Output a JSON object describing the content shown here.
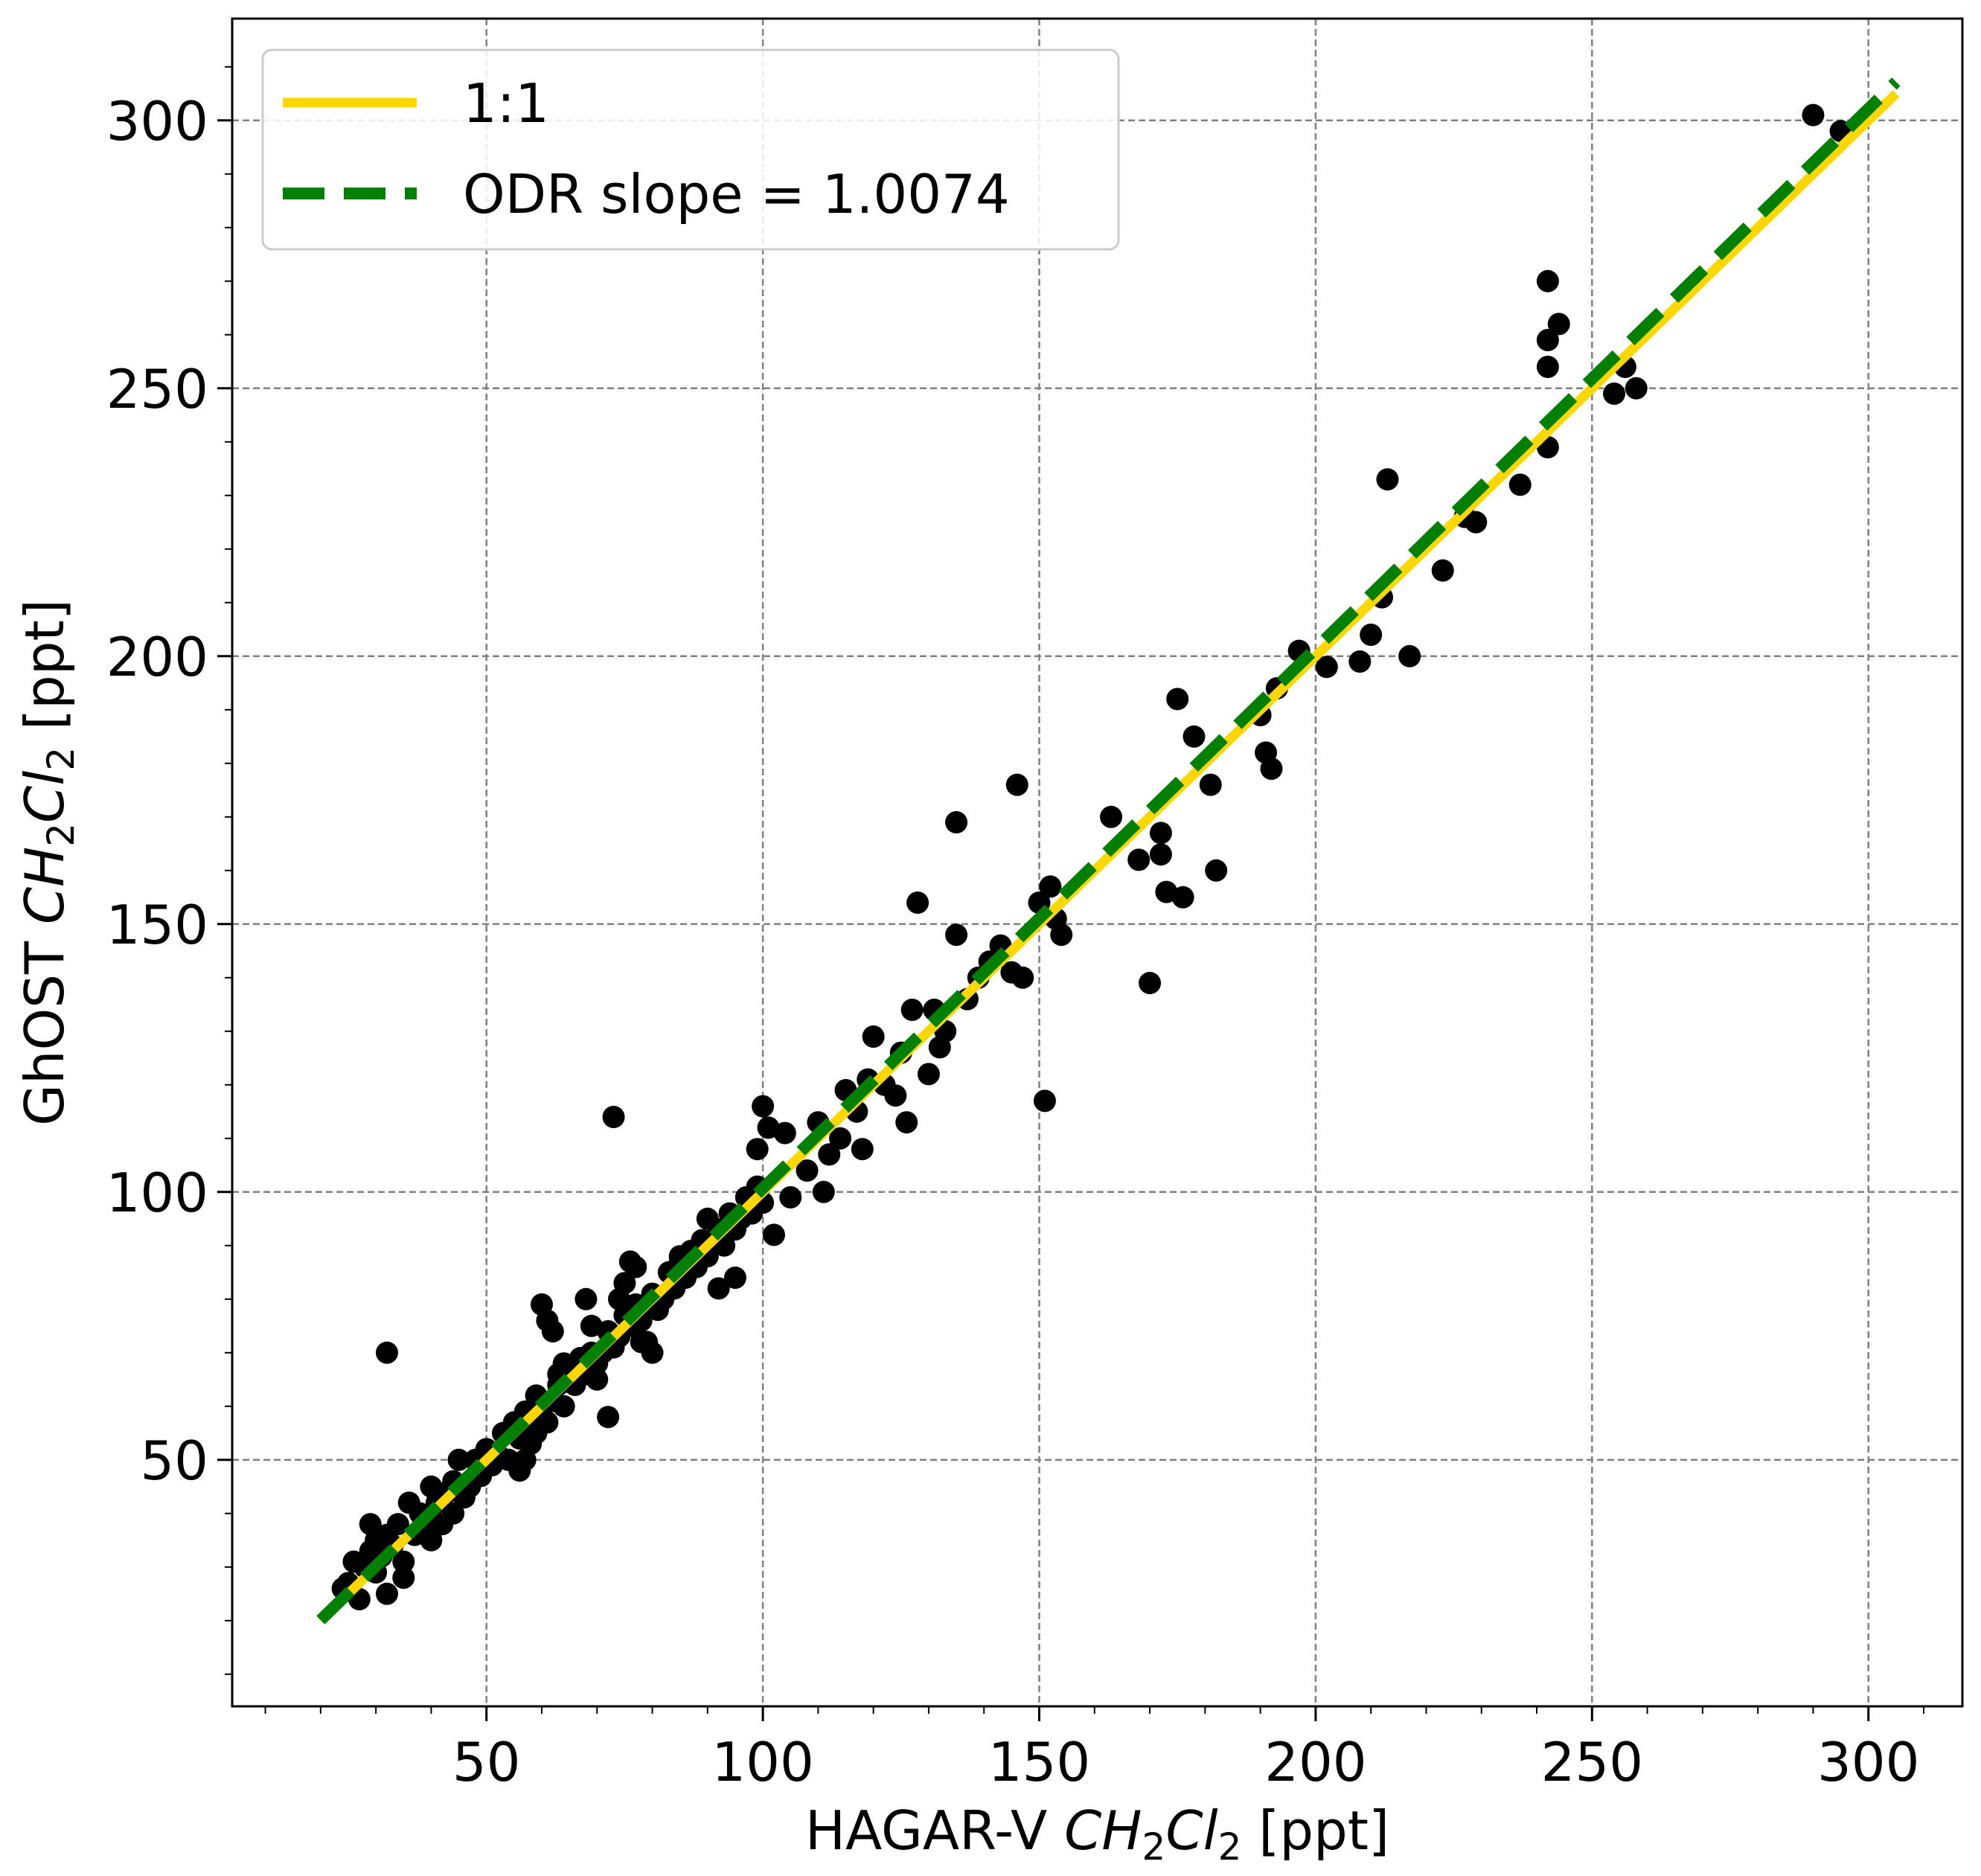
{
  "chart_data": {
    "type": "scatter",
    "xlabel": {
      "prefix": "HAGAR-V ",
      "formula": [
        "CH",
        "2",
        "Cl",
        "2"
      ],
      "suffix": " [ppt]"
    },
    "ylabel": {
      "prefix": "GhOST ",
      "formula": [
        "CH",
        "2",
        "Cl",
        "2"
      ],
      "suffix": " [ppt]"
    },
    "xlim": [
      4,
      317
    ],
    "ylim": [
      4,
      319
    ],
    "x_ticks": [
      50,
      100,
      150,
      200,
      250,
      300
    ],
    "y_ticks": [
      50,
      100,
      150,
      200,
      250,
      300
    ],
    "x_tick_labels": [
      "50",
      "100",
      "150",
      "200",
      "250",
      "300"
    ],
    "y_tick_labels": [
      "50",
      "100",
      "150",
      "200",
      "250",
      "300"
    ],
    "grid": true,
    "legend": {
      "position": "top-left",
      "entries": [
        "1:1",
        "ODR slope = 1.0074"
      ]
    },
    "series": [
      {
        "name": "1:1",
        "kind": "line",
        "style": "solid",
        "color": "#FFD700",
        "x": [
          20,
          305
        ],
        "y": [
          20,
          305
        ]
      },
      {
        "name": "ODR slope = 1.0074",
        "kind": "line",
        "style": "dashed",
        "color": "#008000",
        "x": [
          20,
          305
        ],
        "y": [
          20.1,
          307.2
        ]
      },
      {
        "kind": "scatter",
        "color": "#000000",
        "points": [
          [
            24,
            26
          ],
          [
            25,
            27
          ],
          [
            26,
            31
          ],
          [
            27,
            24
          ],
          [
            28,
            30
          ],
          [
            29,
            33
          ],
          [
            29,
            38
          ],
          [
            30,
            35
          ],
          [
            30,
            29
          ],
          [
            31,
            32
          ],
          [
            32,
            25
          ],
          [
            32,
            36
          ],
          [
            33,
            34
          ],
          [
            34,
            38
          ],
          [
            35,
            31
          ],
          [
            35,
            28
          ],
          [
            36,
            42
          ],
          [
            37,
            36
          ],
          [
            38,
            40
          ],
          [
            39,
            38
          ],
          [
            40,
            45
          ],
          [
            40,
            35
          ],
          [
            41,
            42
          ],
          [
            42,
            38
          ],
          [
            43,
            44
          ],
          [
            44,
            40
          ],
          [
            44,
            46
          ],
          [
            45,
            50
          ],
          [
            46,
            43
          ],
          [
            47,
            45
          ],
          [
            48,
            50
          ],
          [
            49,
            47
          ],
          [
            50,
            52
          ],
          [
            51,
            49
          ],
          [
            52,
            51
          ],
          [
            53,
            55
          ],
          [
            54,
            50
          ],
          [
            55,
            57
          ],
          [
            56,
            54
          ],
          [
            57,
            59
          ],
          [
            58,
            56
          ],
          [
            59,
            62
          ],
          [
            60,
            58
          ],
          [
            61,
            57
          ],
          [
            62,
            61
          ],
          [
            63,
            64
          ],
          [
            64,
            60
          ],
          [
            65,
            67
          ],
          [
            66,
            64
          ],
          [
            67,
            69
          ],
          [
            68,
            66
          ],
          [
            69,
            70
          ],
          [
            70,
            68
          ],
          [
            71,
            70
          ],
          [
            72,
            74
          ],
          [
            73,
            71
          ],
          [
            74,
            73
          ],
          [
            75,
            77
          ],
          [
            76,
            75
          ],
          [
            77,
            79
          ],
          [
            78,
            76
          ],
          [
            79,
            72
          ],
          [
            80,
            81
          ],
          [
            81,
            78
          ],
          [
            82,
            80
          ],
          [
            83,
            85
          ],
          [
            84,
            82
          ],
          [
            85,
            87
          ],
          [
            86,
            84
          ],
          [
            87,
            89
          ],
          [
            88,
            86
          ],
          [
            89,
            91
          ],
          [
            90,
            88
          ],
          [
            91,
            90
          ],
          [
            92,
            93
          ],
          [
            93,
            90
          ],
          [
            94,
            96
          ],
          [
            95,
            93
          ],
          [
            96,
            95
          ],
          [
            97,
            99
          ],
          [
            98,
            96
          ],
          [
            99,
            101
          ],
          [
            100,
            98
          ],
          [
            32,
            70
          ],
          [
            56,
            48
          ],
          [
            57,
            50
          ],
          [
            58,
            53
          ],
          [
            59,
            55
          ],
          [
            60,
            79
          ],
          [
            61,
            76
          ],
          [
            62,
            74
          ],
          [
            63,
            66
          ],
          [
            64,
            68
          ],
          [
            68,
            80
          ],
          [
            69,
            75
          ],
          [
            70,
            65
          ],
          [
            72,
            58
          ],
          [
            73,
            114
          ],
          [
            74,
            80
          ],
          [
            75,
            83
          ],
          [
            76,
            87
          ],
          [
            77,
            86
          ],
          [
            78,
            72
          ],
          [
            80,
            70
          ],
          [
            85,
            88
          ],
          [
            90,
            95
          ],
          [
            92,
            82
          ],
          [
            95,
            84
          ],
          [
            99,
            108
          ],
          [
            100,
            116
          ],
          [
            101,
            112
          ],
          [
            102,
            92
          ],
          [
            104,
            111
          ],
          [
            105,
            99
          ],
          [
            108,
            104
          ],
          [
            110,
            113
          ],
          [
            111,
            100
          ],
          [
            112,
            107
          ],
          [
            114,
            110
          ],
          [
            115,
            119
          ],
          [
            117,
            115
          ],
          [
            118,
            108
          ],
          [
            119,
            121
          ],
          [
            120,
            129
          ],
          [
            122,
            120
          ],
          [
            124,
            118
          ],
          [
            125,
            126
          ],
          [
            126,
            113
          ],
          [
            127,
            134
          ],
          [
            128,
            154
          ],
          [
            130,
            122
          ],
          [
            131,
            134
          ],
          [
            132,
            127
          ],
          [
            133,
            130
          ],
          [
            135,
            148
          ],
          [
            135,
            169
          ],
          [
            137,
            136
          ],
          [
            139,
            140
          ],
          [
            141,
            143
          ],
          [
            143,
            146
          ],
          [
            145,
            141
          ],
          [
            146,
            176
          ],
          [
            147,
            140
          ],
          [
            150,
            154
          ],
          [
            151,
            117
          ],
          [
            152,
            157
          ],
          [
            153,
            151
          ],
          [
            154,
            148
          ],
          [
            163,
            170
          ],
          [
            168,
            162
          ],
          [
            170,
            139
          ],
          [
            172,
            167
          ],
          [
            172,
            163
          ],
          [
            173,
            156
          ],
          [
            175,
            192
          ],
          [
            176,
            155
          ],
          [
            178,
            185
          ],
          [
            181,
            176
          ],
          [
            182,
            160
          ],
          [
            190,
            189
          ],
          [
            191,
            182
          ],
          [
            192,
            179
          ],
          [
            193,
            194
          ],
          [
            197,
            201
          ],
          [
            202,
            198
          ],
          [
            208,
            199
          ],
          [
            210,
            204
          ],
          [
            212,
            211
          ],
          [
            213,
            233
          ],
          [
            217,
            200
          ],
          [
            223,
            216
          ],
          [
            227,
            226
          ],
          [
            229,
            225
          ],
          [
            237,
            232
          ],
          [
            242,
            239
          ],
          [
            242,
            254
          ],
          [
            242,
            259
          ],
          [
            242,
            270
          ],
          [
            244,
            262
          ],
          [
            254,
            249
          ],
          [
            256,
            254
          ],
          [
            258,
            250
          ],
          [
            290,
            301
          ],
          [
            295,
            298
          ]
        ]
      }
    ]
  }
}
